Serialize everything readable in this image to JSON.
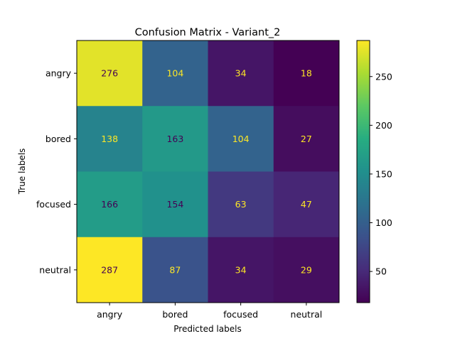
{
  "chart_data": {
    "type": "heatmap",
    "title": "Confusion Matrix - Variant_2",
    "xlabel": "Predicted labels",
    "ylabel": "True labels",
    "x_categories": [
      "angry",
      "bored",
      "focused",
      "neutral"
    ],
    "y_categories": [
      "angry",
      "bored",
      "focused",
      "neutral"
    ],
    "values": [
      [
        276,
        104,
        34,
        18
      ],
      [
        138,
        163,
        104,
        27
      ],
      [
        166,
        154,
        63,
        47
      ],
      [
        287,
        87,
        34,
        29
      ]
    ],
    "colormap": "viridis",
    "colorbar": {
      "min": 18,
      "max": 287,
      "ticks": [
        50,
        100,
        150,
        200,
        250
      ]
    },
    "text_color_light": "#fde725",
    "text_color_dark": "#440154"
  }
}
